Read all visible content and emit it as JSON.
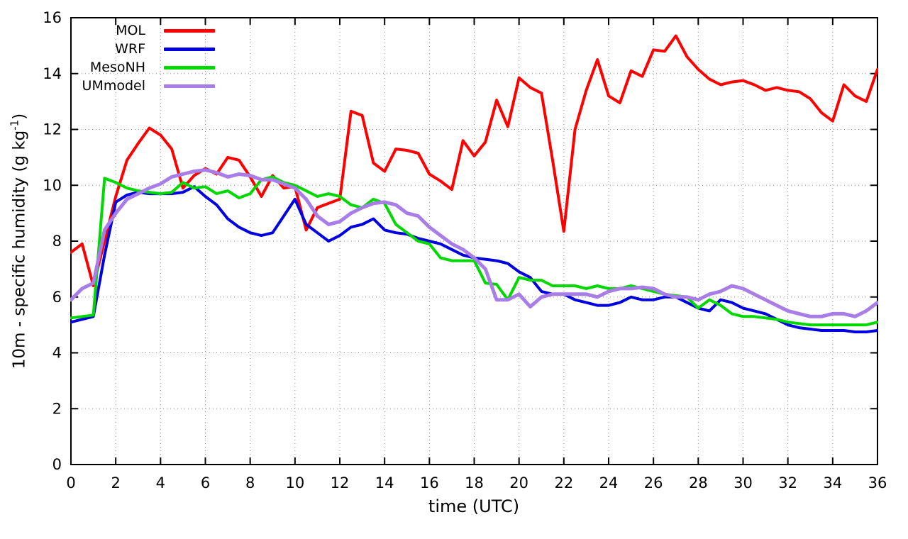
{
  "chart_data": {
    "type": "line",
    "title": "",
    "xlabel": "time (UTC)",
    "ylabel_main": "10m - specific humidity (g kg",
    "ylabel_sup": "-1",
    "ylabel_end": ")",
    "xlim": [
      0,
      36
    ],
    "ylim": [
      0,
      16
    ],
    "xticks": [
      0,
      2,
      4,
      6,
      8,
      10,
      12,
      14,
      16,
      18,
      20,
      22,
      24,
      26,
      28,
      30,
      32,
      34,
      36
    ],
    "yticks": [
      0,
      2,
      4,
      6,
      8,
      10,
      12,
      14,
      16
    ],
    "grid": true,
    "grid_style": "dotted",
    "legend_position": "top-left",
    "x_start": 0,
    "x_step": 0.5,
    "series": [
      {
        "name": "MOL",
        "color": "#ff0000",
        "values": [
          7.6,
          7.9,
          6.4,
          8.0,
          9.6,
          10.9,
          11.5,
          12.05,
          11.8,
          11.3,
          9.9,
          10.35,
          10.6,
          10.4,
          11.0,
          10.9,
          10.3,
          9.6,
          10.35,
          9.9,
          9.95,
          8.4,
          9.2,
          9.35,
          9.5,
          12.65,
          12.5,
          10.8,
          10.5,
          11.3,
          11.25,
          11.15,
          10.4,
          10.15,
          9.85,
          11.6,
          11.05,
          11.55,
          13.05,
          12.1,
          13.85,
          13.5,
          13.3,
          10.9,
          8.35,
          12.0,
          13.4,
          14.5,
          13.2,
          12.95,
          14.1,
          13.9,
          14.85,
          14.8,
          15.35,
          14.6,
          14.15,
          13.8,
          13.6,
          13.7,
          13.75,
          13.6,
          13.4,
          13.5,
          13.4,
          13.35,
          13.1,
          12.6,
          12.3,
          13.6,
          13.2,
          13.0,
          14.15
        ]
      },
      {
        "name": "WRF",
        "color": "#0000e0",
        "values": [
          5.1,
          5.2,
          5.3,
          7.5,
          9.4,
          9.65,
          9.75,
          9.7,
          9.7,
          9.7,
          9.75,
          9.95,
          9.6,
          9.3,
          8.8,
          8.5,
          8.3,
          8.2,
          8.3,
          8.9,
          9.5,
          8.6,
          8.3,
          8.0,
          8.2,
          8.5,
          8.6,
          8.8,
          8.4,
          8.3,
          8.25,
          8.1,
          8.0,
          7.9,
          7.7,
          7.5,
          7.4,
          7.35,
          7.3,
          7.2,
          6.9,
          6.7,
          6.2,
          6.1,
          6.1,
          5.9,
          5.8,
          5.7,
          5.7,
          5.8,
          6.0,
          5.9,
          5.9,
          6.0,
          6.0,
          5.8,
          5.6,
          5.5,
          5.9,
          5.8,
          5.6,
          5.5,
          5.4,
          5.2,
          5.0,
          4.9,
          4.85,
          4.8,
          4.8,
          4.8,
          4.75,
          4.75,
          4.8
        ]
      },
      {
        "name": "MesoNH",
        "color": "#00d800",
        "values": [
          5.25,
          5.3,
          5.35,
          10.25,
          10.1,
          9.9,
          9.8,
          9.75,
          9.7,
          9.75,
          10.1,
          9.9,
          9.95,
          9.7,
          9.8,
          9.55,
          9.7,
          10.2,
          10.3,
          10.1,
          10.0,
          9.8,
          9.6,
          9.7,
          9.6,
          9.3,
          9.2,
          9.5,
          9.35,
          8.6,
          8.3,
          8.0,
          7.9,
          7.4,
          7.3,
          7.3,
          7.3,
          6.5,
          6.45,
          5.9,
          6.7,
          6.6,
          6.6,
          6.4,
          6.4,
          6.4,
          6.3,
          6.4,
          6.3,
          6.3,
          6.4,
          6.3,
          6.2,
          6.1,
          6.05,
          6.0,
          5.6,
          5.9,
          5.7,
          5.4,
          5.3,
          5.3,
          5.25,
          5.2,
          5.1,
          5.05,
          5.0,
          5.0,
          5.0,
          5.0,
          5.0,
          5.0,
          5.1
        ]
      },
      {
        "name": "UMmodel",
        "color": "#a97de8",
        "values": [
          5.9,
          6.3,
          6.5,
          8.4,
          9.0,
          9.5,
          9.7,
          9.9,
          10.05,
          10.3,
          10.4,
          10.5,
          10.55,
          10.45,
          10.3,
          10.4,
          10.35,
          10.2,
          10.2,
          10.05,
          9.9,
          9.5,
          8.9,
          8.6,
          8.7,
          9.0,
          9.2,
          9.35,
          9.4,
          9.3,
          9.0,
          8.9,
          8.5,
          8.2,
          7.9,
          7.7,
          7.4,
          7.0,
          5.9,
          5.9,
          6.1,
          5.65,
          6.0,
          6.1,
          6.1,
          6.1,
          6.1,
          6.0,
          6.2,
          6.3,
          6.3,
          6.35,
          6.3,
          6.1,
          6.0,
          6.0,
          5.9,
          6.1,
          6.2,
          6.4,
          6.3,
          6.1,
          5.9,
          5.7,
          5.5,
          5.4,
          5.3,
          5.3,
          5.4,
          5.4,
          5.3,
          5.5,
          5.8
        ]
      }
    ]
  }
}
